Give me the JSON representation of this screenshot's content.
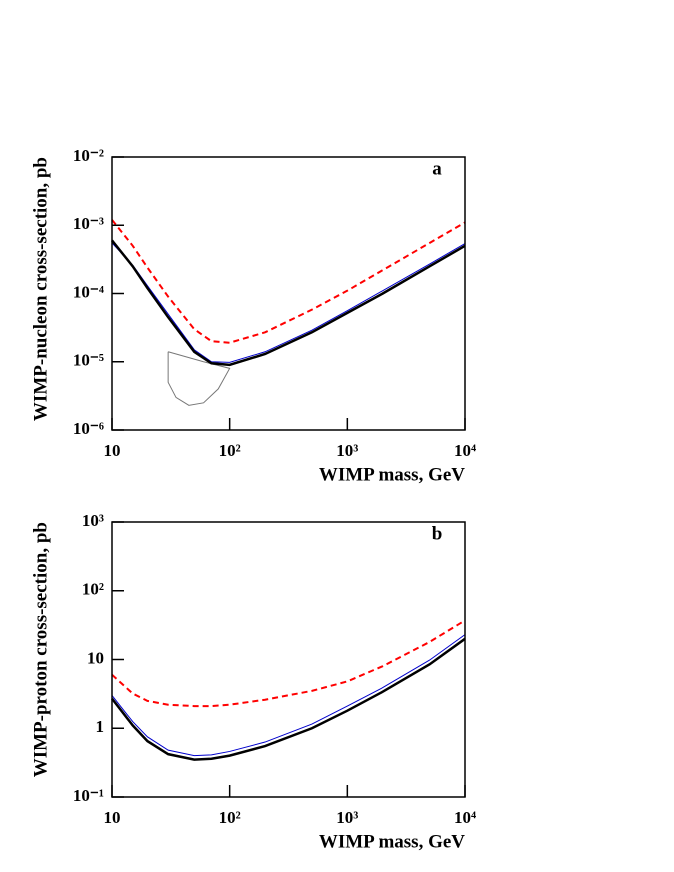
{
  "chart_data": [
    {
      "type": "line",
      "panel_label": "a",
      "x_label": "WIMP mass, GeV",
      "y_label": "WIMP-nucleon cross-section, pb",
      "log_x": true,
      "log_y": true,
      "xlim": [
        10,
        10000
      ],
      "ylim": [
        1e-06,
        0.01
      ],
      "xticks": [
        10,
        {
          "value": 100,
          "label": "10²"
        },
        {
          "value": 1000,
          "label": "10³"
        },
        {
          "value": 10000,
          "label": "10⁴"
        }
      ],
      "yticks": [
        {
          "value": 1e-06,
          "label": "10⁻⁶"
        },
        {
          "value": 1e-05,
          "label": "10⁻⁵"
        },
        {
          "value": 0.0001,
          "label": "10⁻⁴"
        },
        {
          "value": 0.001,
          "label": "10⁻³"
        },
        {
          "value": 0.01,
          "label": "10⁻²"
        }
      ],
      "x": [
        10,
        15,
        20,
        30,
        50,
        70,
        100,
        200,
        500,
        1000,
        2000,
        5000,
        10000
      ],
      "series": [
        {
          "color": "#ff0000",
          "style": "dashed",
          "width": 2,
          "values": [
            0.0012,
            0.0005,
            0.00024,
            9e-05,
            3e-05,
            2e-05,
            1.9e-05,
            2.7e-05,
            5.8e-05,
            0.00011,
            0.00022,
            0.00055,
            0.0011
          ]
        },
        {
          "color": "#0000cc",
          "style": "solid",
          "width": 1,
          "values": [
            0.00055,
            0.00026,
            0.00013,
            5e-05,
            1.5e-05,
            1e-05,
            9.8e-06,
            1.4e-05,
            2.9e-05,
            5.6e-05,
            0.00011,
            0.00027,
            0.00054
          ]
        },
        {
          "color": "#000000",
          "style": "solid",
          "width": 2.5,
          "values": [
            0.0006,
            0.00025,
            0.00012,
            4.5e-05,
            1.4e-05,
            9.5e-06,
            9e-06,
            1.3e-05,
            2.7e-05,
            5.2e-05,
            0.0001,
            0.00025,
            0.0005
          ]
        }
      ],
      "regions": [
        {
          "color": "#777777",
          "x": [
            30,
            60,
            100,
            80,
            60,
            45,
            35,
            30,
            30
          ],
          "y": [
            1.4e-05,
            1e-05,
            8e-06,
            4e-06,
            2.5e-06,
            2.3e-06,
            3e-06,
            5e-06,
            1.4e-05
          ]
        }
      ]
    },
    {
      "type": "line",
      "panel_label": "b",
      "x_label": "WIMP mass, GeV",
      "y_label": "WIMP-proton cross-section, pb",
      "log_x": true,
      "log_y": true,
      "xlim": [
        10,
        10000
      ],
      "ylim": [
        0.1,
        1000
      ],
      "xticks": [
        10,
        {
          "value": 100,
          "label": "10²"
        },
        {
          "value": 1000,
          "label": "10³"
        },
        {
          "value": 10000,
          "label": "10⁴"
        }
      ],
      "yticks": [
        {
          "value": 0.1,
          "label": "10⁻¹"
        },
        1,
        10,
        {
          "value": 100,
          "label": "10²"
        },
        {
          "value": 1000,
          "label": "10³"
        }
      ],
      "x": [
        10,
        15,
        20,
        30,
        50,
        70,
        100,
        200,
        500,
        1000,
        2000,
        5000,
        10000
      ],
      "series": [
        {
          "color": "#ff0000",
          "style": "dashed",
          "width": 2,
          "values": [
            6,
            3.2,
            2.5,
            2.2,
            2.1,
            2.1,
            2.2,
            2.6,
            3.5,
            4.8,
            8,
            18,
            37
          ]
        },
        {
          "color": "#0000cc",
          "style": "solid",
          "width": 1,
          "values": [
            3,
            1.25,
            0.75,
            0.48,
            0.4,
            0.41,
            0.46,
            0.63,
            1.15,
            2.1,
            3.9,
            9.8,
            23
          ]
        },
        {
          "color": "#000000",
          "style": "solid",
          "width": 2.5,
          "values": [
            2.7,
            1.1,
            0.65,
            0.42,
            0.35,
            0.36,
            0.4,
            0.55,
            1,
            1.8,
            3.4,
            8.5,
            20
          ]
        }
      ]
    }
  ]
}
